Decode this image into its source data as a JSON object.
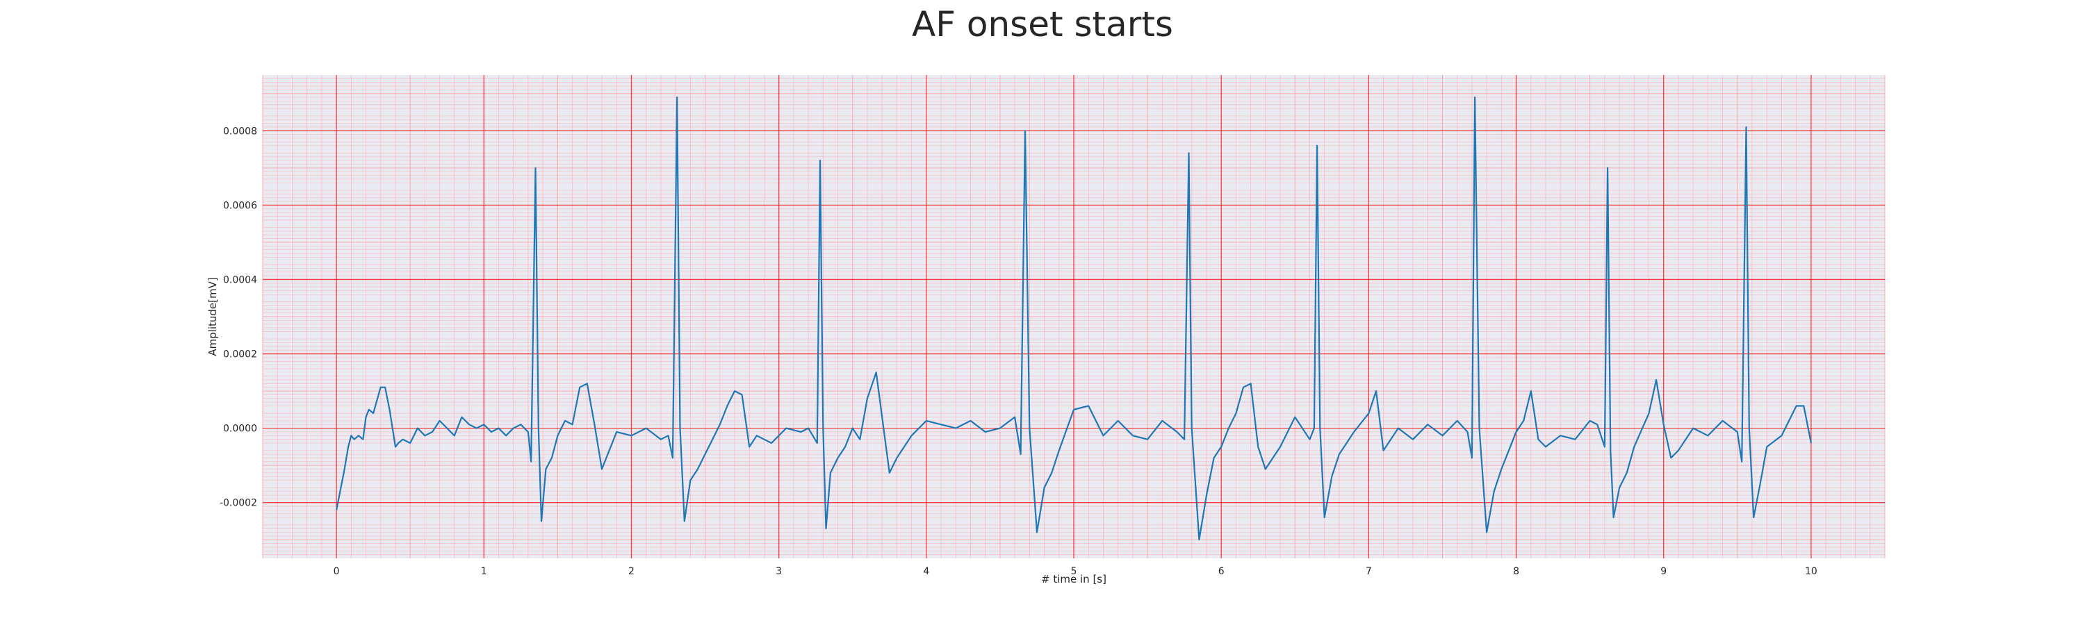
{
  "chart_data": {
    "type": "line",
    "title": "AF onset starts",
    "xlabel": "# time in [s]",
    "ylabel": "Amplitude[mV]",
    "xlim": [
      -0.5,
      10.5
    ],
    "ylim": [
      -0.00035,
      0.00095
    ],
    "x_ticks": [
      0,
      1,
      2,
      3,
      4,
      5,
      6,
      7,
      8,
      9,
      10
    ],
    "x_tick_labels": [
      "0",
      "1",
      "2",
      "3",
      "4",
      "5",
      "6",
      "7",
      "8",
      "9",
      "10"
    ],
    "y_ticks": [
      -0.0002,
      0.0,
      0.0002,
      0.0004,
      0.0006,
      0.0008
    ],
    "y_tick_labels": [
      "-0.0002",
      "0.0000",
      "0.0002",
      "0.0004",
      "0.0006",
      "0.0008"
    ],
    "grid": true,
    "minor_grid": true,
    "colors": {
      "background": "#eaeaf2",
      "major_grid": "#ff0000",
      "minor_grid": "#ff9a9a",
      "line": "#1f77b4"
    },
    "series": [
      {
        "x": [
          0.0,
          0.02,
          0.05,
          0.08,
          0.1,
          0.12,
          0.15,
          0.18,
          0.2,
          0.22,
          0.25,
          0.3,
          0.33,
          0.36,
          0.4,
          0.42,
          0.45,
          0.5,
          0.55,
          0.6,
          0.65,
          0.7,
          0.75,
          0.8,
          0.85,
          0.9,
          0.95,
          1.0,
          1.05,
          1.1,
          1.15,
          1.2,
          1.25,
          1.3,
          1.32,
          1.35,
          1.37,
          1.39,
          1.42,
          1.46,
          1.5,
          1.55,
          1.6,
          1.65,
          1.7,
          1.75,
          1.8,
          1.85,
          1.9,
          2.0,
          2.1,
          2.2,
          2.25,
          2.28,
          2.31,
          2.33,
          2.36,
          2.4,
          2.45,
          2.5,
          2.55,
          2.6,
          2.65,
          2.7,
          2.75,
          2.8,
          2.85,
          2.95,
          3.05,
          3.15,
          3.2,
          3.26,
          3.28,
          3.3,
          3.32,
          3.35,
          3.4,
          3.45,
          3.5,
          3.55,
          3.6,
          3.66,
          3.7,
          3.75,
          3.8,
          3.9,
          4.0,
          4.1,
          4.2,
          4.3,
          4.4,
          4.5,
          4.6,
          4.64,
          4.67,
          4.7,
          4.75,
          4.8,
          4.85,
          4.9,
          5.0,
          5.1,
          5.2,
          5.3,
          5.4,
          5.5,
          5.6,
          5.7,
          5.75,
          5.78,
          5.8,
          5.85,
          5.9,
          5.95,
          6.0,
          6.05,
          6.1,
          6.15,
          6.2,
          6.25,
          6.3,
          6.4,
          6.5,
          6.6,
          6.63,
          6.65,
          6.67,
          6.7,
          6.75,
          6.8,
          6.9,
          7.0,
          7.05,
          7.1,
          7.2,
          7.3,
          7.4,
          7.5,
          7.6,
          7.67,
          7.7,
          7.72,
          7.75,
          7.8,
          7.85,
          7.9,
          8.0,
          8.05,
          8.1,
          8.15,
          8.2,
          8.3,
          8.4,
          8.5,
          8.55,
          8.6,
          8.62,
          8.64,
          8.66,
          8.7,
          8.75,
          8.8,
          8.9,
          8.95,
          9.0,
          9.05,
          9.1,
          9.2,
          9.3,
          9.4,
          9.5,
          9.53,
          9.56,
          9.58,
          9.61,
          9.65,
          9.7,
          9.8,
          9.9,
          9.95,
          10.0
        ],
        "values": [
          -0.00022,
          -0.00018,
          -0.00012,
          -5e-05,
          -2e-05,
          -3e-05,
          -2e-05,
          -3e-05,
          3e-05,
          5e-05,
          4e-05,
          0.00011,
          0.00011,
          5e-05,
          -5e-05,
          -4e-05,
          -3e-05,
          -4e-05,
          0.0,
          -2e-05,
          -1e-05,
          2e-05,
          0.0,
          -2e-05,
          3e-05,
          1e-05,
          0.0,
          1e-05,
          -1e-05,
          0.0,
          -2e-05,
          0.0,
          1e-05,
          -1e-05,
          -9e-05,
          0.0007,
          0.0,
          -0.00025,
          -0.00011,
          -8e-05,
          -2e-05,
          2e-05,
          1e-05,
          0.00011,
          0.00012,
          1e-05,
          -0.00011,
          -6e-05,
          -1e-05,
          -2e-05,
          0.0,
          -3e-05,
          -2e-05,
          -8e-05,
          0.00089,
          0.0,
          -0.00025,
          -0.00014,
          -0.00011,
          -7e-05,
          -3e-05,
          1e-05,
          6e-05,
          0.0001,
          9e-05,
          -5e-05,
          -2e-05,
          -4e-05,
          0.0,
          -1e-05,
          0.0,
          -4e-05,
          0.00072,
          0.0,
          -0.00027,
          -0.00012,
          -8e-05,
          -5e-05,
          0.0,
          -3e-05,
          8e-05,
          0.00015,
          3e-05,
          -0.00012,
          -8e-05,
          -2e-05,
          2e-05,
          1e-05,
          0.0,
          2e-05,
          -1e-05,
          0.0,
          3e-05,
          -7e-05,
          0.0008,
          0.0,
          -0.00028,
          -0.00016,
          -0.00012,
          -6e-05,
          5e-05,
          6e-05,
          -2e-05,
          2e-05,
          -2e-05,
          -3e-05,
          2e-05,
          -1e-05,
          -3e-05,
          0.00074,
          0.0,
          -0.0003,
          -0.00018,
          -8e-05,
          -5e-05,
          0.0,
          4e-05,
          0.00011,
          0.00012,
          -5e-05,
          -0.00011,
          -5e-05,
          3e-05,
          -3e-05,
          0.0,
          0.00076,
          0.0,
          -0.00024,
          -0.00013,
          -7e-05,
          -1e-05,
          4e-05,
          0.0001,
          -6e-05,
          0.0,
          -3e-05,
          1e-05,
          -2e-05,
          2e-05,
          -1e-05,
          -8e-05,
          0.00089,
          0.0,
          -0.00028,
          -0.00017,
          -0.00011,
          -1e-05,
          2e-05,
          0.0001,
          -3e-05,
          -5e-05,
          -2e-05,
          -3e-05,
          2e-05,
          1e-05,
          -5e-05,
          0.0007,
          -6e-05,
          -0.00024,
          -0.00016,
          -0.00012,
          -5e-05,
          4e-05,
          0.00013,
          1e-05,
          -8e-05,
          -6e-05,
          0.0,
          -2e-05,
          2e-05,
          -1e-05,
          -9e-05,
          0.00081,
          0.0,
          -0.00024,
          -0.00016,
          -5e-05,
          -2e-05,
          6e-05,
          6e-05,
          -4e-05
        ]
      }
    ]
  }
}
